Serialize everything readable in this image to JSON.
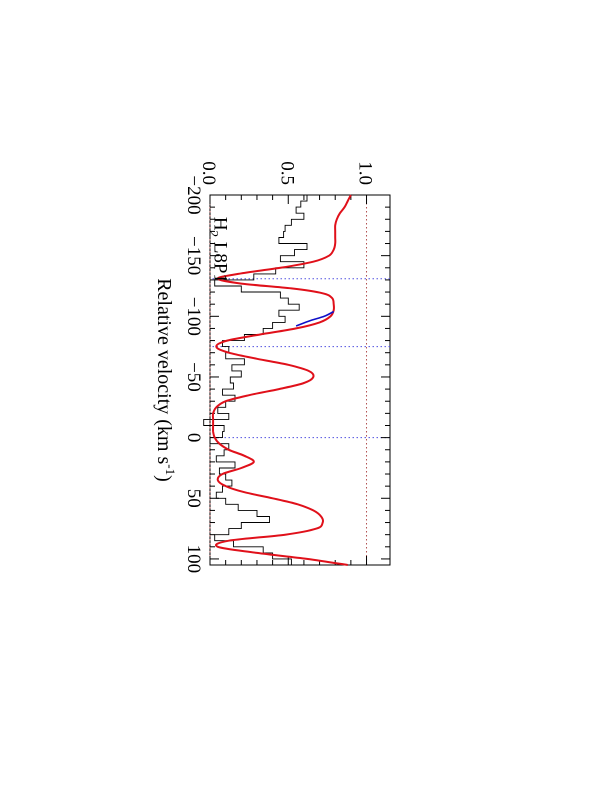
{
  "chart_data": {
    "type": "line",
    "orientation": "rotated 90 degrees clockwise",
    "annotation": {
      "species": "H",
      "subscript": "2",
      "transition": " L8P1"
    },
    "xlabel": {
      "main": "Relative velocity (km s",
      "sup": "-1",
      "close": ")"
    },
    "ylabel": "",
    "xlim": [
      -200,
      105
    ],
    "ylim": [
      0.0,
      1.15
    ],
    "x_ticks": [
      {
        "value": -200,
        "label": "−200"
      },
      {
        "value": -150,
        "label": "−150"
      },
      {
        "value": -100,
        "label": "−100"
      },
      {
        "value": -50,
        "label": "−50"
      },
      {
        "value": 0,
        "label": "0"
      },
      {
        "value": 50,
        "label": "50"
      },
      {
        "value": 100,
        "label": "100"
      }
    ],
    "y_ticks": [
      {
        "value": 0.0,
        "label": "0.0"
      },
      {
        "value": 0.5,
        "label": "0.5"
      },
      {
        "value": 1.0,
        "label": "1.0"
      }
    ],
    "reference_lines": {
      "zero_level": 0.0,
      "continuum_level": 1.0,
      "component_velocities": [
        -131,
        -75,
        0
      ]
    },
    "colors": {
      "data": "#000000",
      "model": "#e0101a",
      "model_alt": "#1010c8",
      "reference_red": "#b05050",
      "reference_blue": "#5050e0"
    },
    "series": [
      {
        "role": "data",
        "style": "histogram",
        "x": [
          -200,
          -195,
          -190,
          -185,
          -180,
          -175,
          -170,
          -165,
          -160,
          -155,
          -150,
          -145,
          -140,
          -135,
          -130,
          -125,
          -120,
          -115,
          -110,
          -105,
          -100,
          -95,
          -90,
          -85,
          -80,
          -75,
          -70,
          -65,
          -60,
          -55,
          -50,
          -45,
          -40,
          -35,
          -30,
          -25,
          -20,
          -15,
          -10,
          -5,
          0,
          5,
          10,
          15,
          20,
          25,
          30,
          35,
          40,
          45,
          50,
          55,
          60,
          65,
          70,
          75,
          80,
          85,
          90,
          95,
          100
        ],
        "y": [
          0.62,
          0.58,
          0.55,
          0.6,
          0.52,
          0.48,
          0.47,
          0.44,
          0.62,
          0.54,
          0.45,
          0.6,
          0.42,
          0.28,
          0.03,
          0.2,
          0.45,
          0.5,
          0.57,
          0.44,
          0.48,
          0.4,
          0.34,
          0.22,
          0.08,
          0.12,
          0.1,
          0.22,
          0.14,
          0.2,
          0.13,
          0.15,
          0.08,
          0.16,
          0.1,
          0.05,
          0.12,
          -0.04,
          0.09,
          0.08,
          0.0,
          0.12,
          0.09,
          0.04,
          0.16,
          0.06,
          0.1,
          0.14,
          0.08,
          0.04,
          0.1,
          0.18,
          0.3,
          0.38,
          0.2,
          0.12,
          0.03,
          0.15,
          0.34,
          0.4,
          0.52
        ]
      },
      {
        "role": "model",
        "style": "smooth",
        "x": [
          -200,
          -195,
          -190,
          -185,
          -180,
          -175,
          -170,
          -165,
          -160,
          -155,
          -150,
          -145,
          -140,
          -135,
          -131,
          -127,
          -123,
          -119,
          -115,
          -110,
          -105,
          -100,
          -95,
          -90,
          -85,
          -80,
          -75,
          -70,
          -65,
          -60,
          -55,
          -50,
          -45,
          -40,
          -35,
          -30,
          -25,
          -20,
          -15,
          -10,
          -5,
          0,
          5,
          10,
          15,
          20,
          25,
          30,
          35,
          40,
          45,
          50,
          55,
          60,
          65,
          70,
          75,
          80,
          85,
          90,
          95,
          100,
          105
        ],
        "y": [
          0.9,
          0.88,
          0.86,
          0.83,
          0.81,
          0.8,
          0.8,
          0.8,
          0.8,
          0.79,
          0.76,
          0.66,
          0.45,
          0.18,
          0.05,
          0.2,
          0.52,
          0.72,
          0.78,
          0.79,
          0.79,
          0.77,
          0.7,
          0.55,
          0.32,
          0.11,
          0.04,
          0.12,
          0.3,
          0.5,
          0.63,
          0.66,
          0.6,
          0.44,
          0.25,
          0.1,
          0.04,
          0.02,
          0.02,
          0.02,
          0.02,
          0.03,
          0.06,
          0.12,
          0.22,
          0.28,
          0.2,
          0.08,
          0.05,
          0.1,
          0.22,
          0.4,
          0.56,
          0.66,
          0.71,
          0.72,
          0.68,
          0.48,
          0.12,
          0.05,
          0.3,
          0.62,
          0.88
        ]
      },
      {
        "role": "model_alt",
        "style": "smooth",
        "x": [
          -104,
          -100,
          -96,
          -92
        ],
        "y": [
          0.79,
          0.73,
          0.63,
          0.55
        ]
      }
    ]
  }
}
